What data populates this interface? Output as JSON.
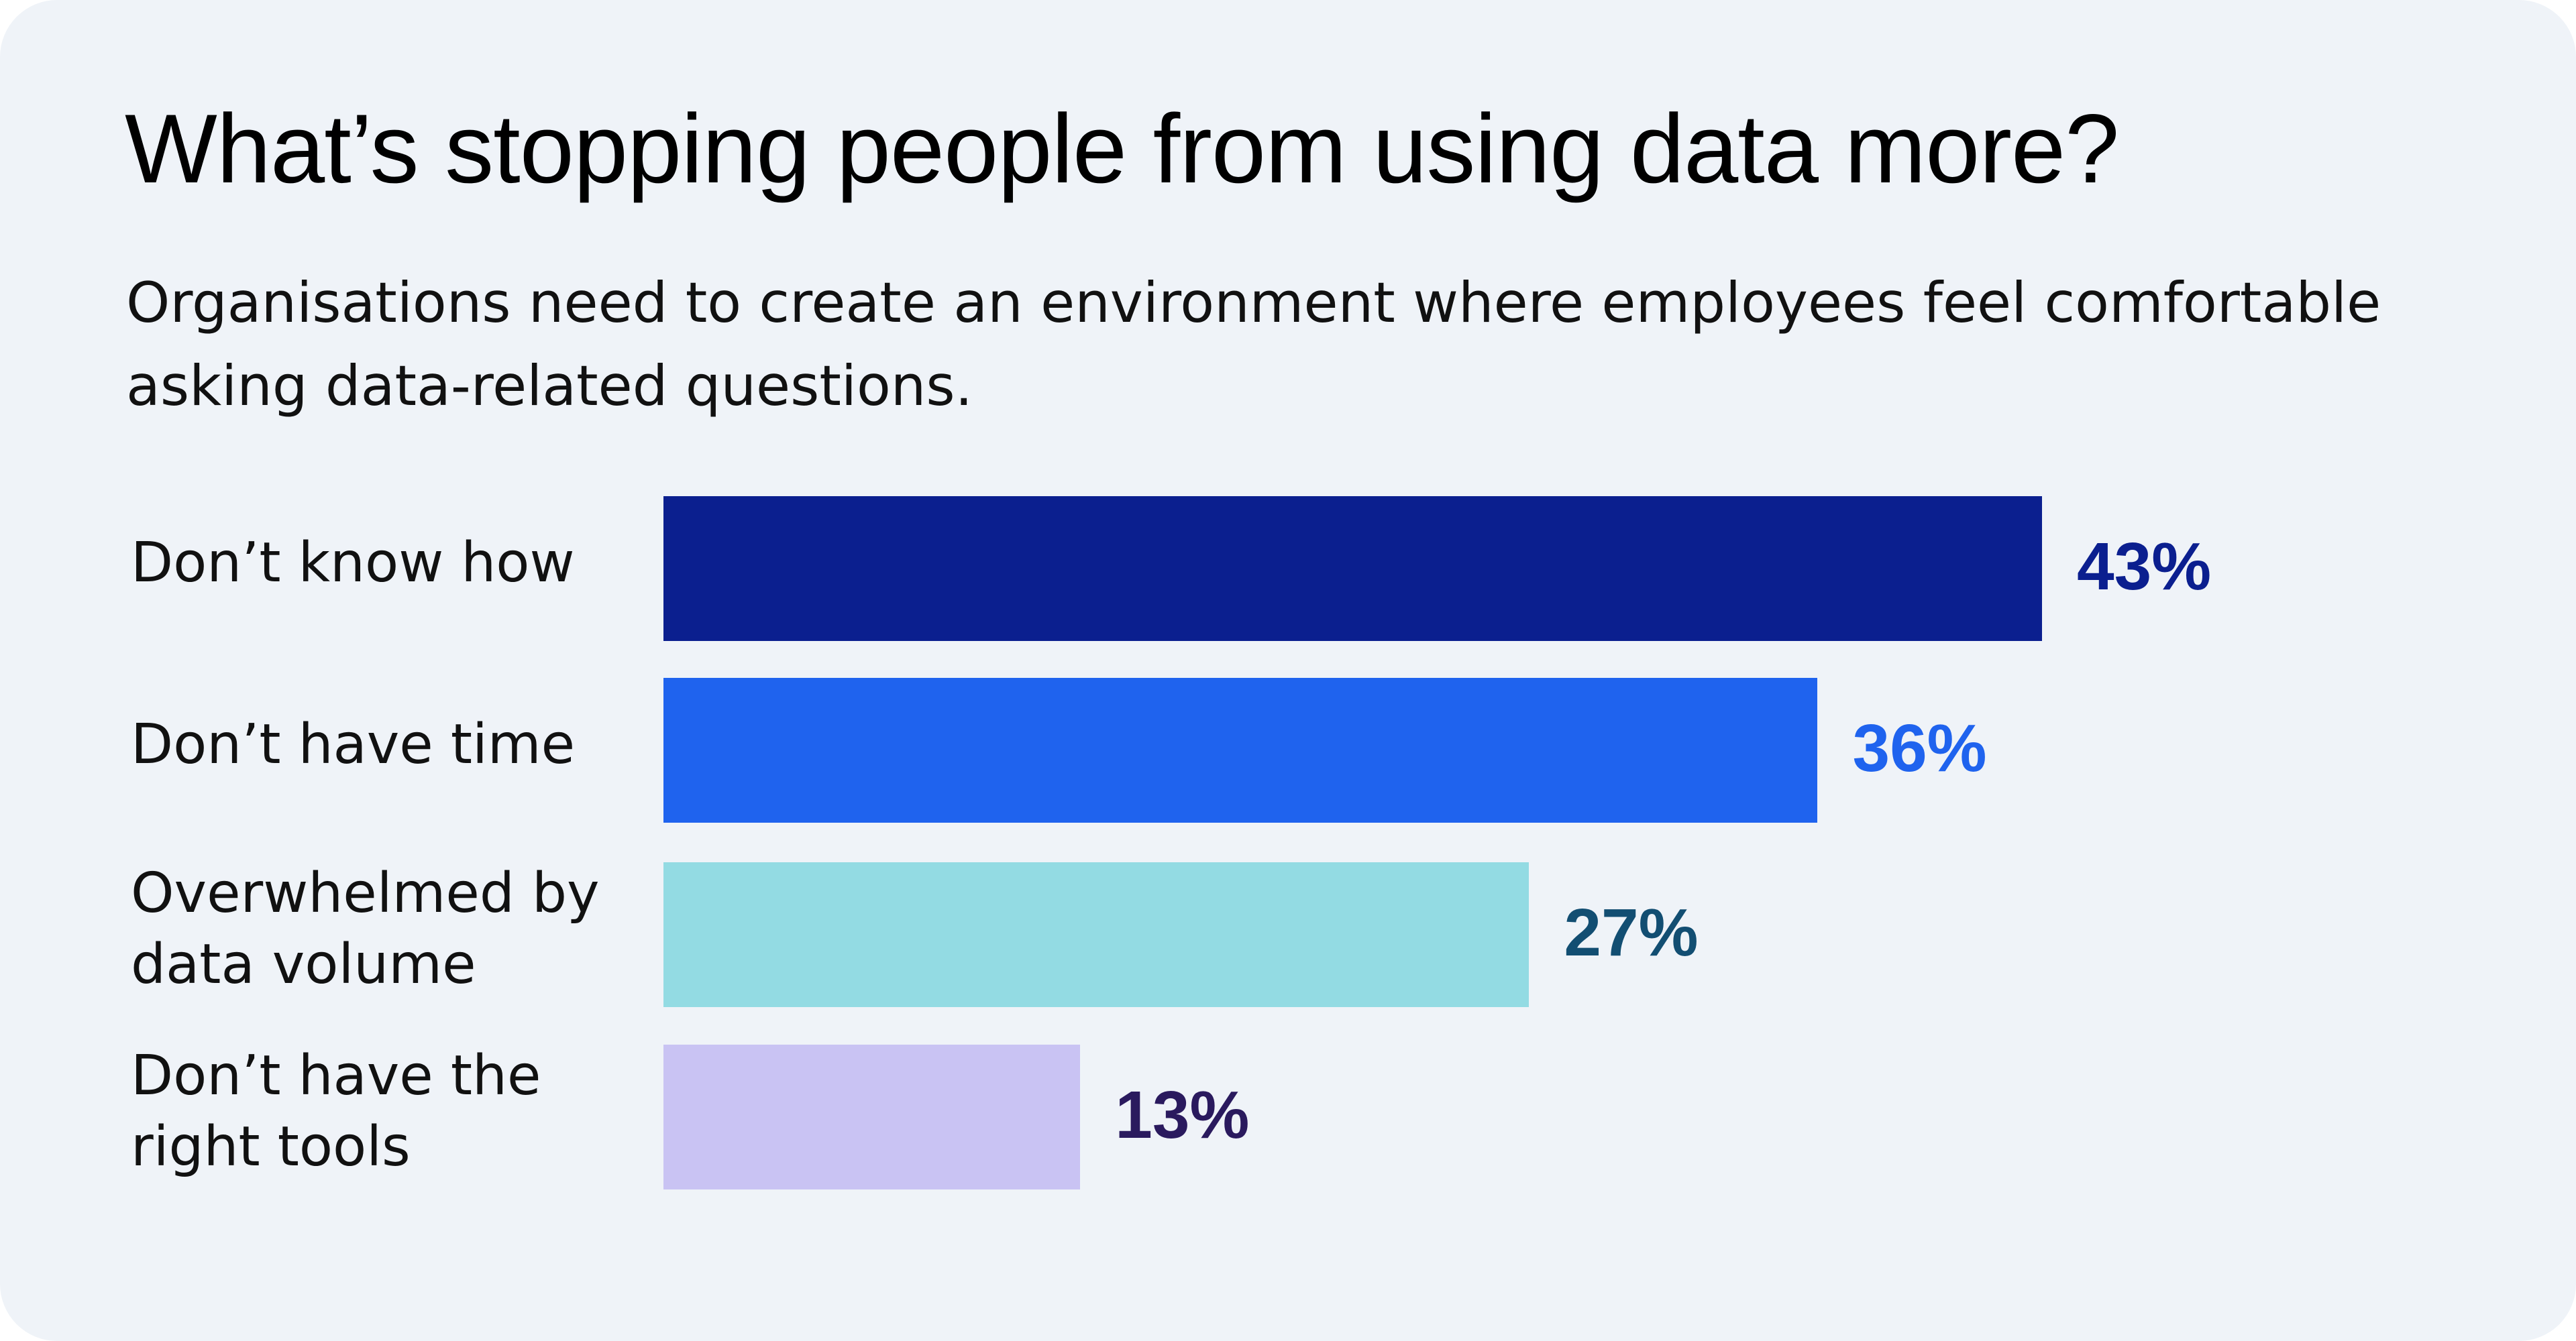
{
  "chart_data": {
    "type": "bar",
    "orientation": "horizontal",
    "title": "What’s stopping people from using data more?",
    "subtitle": "Organisations need to create an environment where employees feel comfortable asking data-related questions.",
    "categories": [
      "Don’t know how",
      "Don’t have time",
      "Overwhelmed by data volume",
      "Don’t have the right tools"
    ],
    "category_lines": [
      [
        "Don’t know how"
      ],
      [
        "Don’t have time"
      ],
      [
        "Overwhelmed by",
        "data volume"
      ],
      [
        "Don’t have the",
        "right tools"
      ]
    ],
    "values": [
      43,
      36,
      27,
      13
    ],
    "data_labels": [
      "43%",
      "36%",
      "27%",
      "13%"
    ],
    "unit": "%",
    "bar_colors": [
      "#0b1f8f",
      "#1f63ee",
      "#93dbe3",
      "#c9c3f3"
    ],
    "label_colors": [
      "#0b1f8f",
      "#1f63ee",
      "#124e72",
      "#2a1a5e"
    ],
    "grid": false,
    "legend": "none",
    "axes_visible": false
  }
}
